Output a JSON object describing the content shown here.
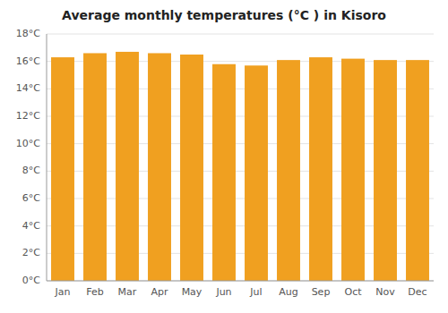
{
  "chart_data": {
    "type": "bar",
    "title": "Average monthly temperatures (°C ) in Kisoro",
    "categories": [
      "Jan",
      "Feb",
      "Mar",
      "Apr",
      "May",
      "Jun",
      "Jul",
      "Aug",
      "Sep",
      "Oct",
      "Nov",
      "Dec"
    ],
    "values": [
      16.3,
      16.6,
      16.7,
      16.6,
      16.5,
      15.8,
      15.7,
      16.1,
      16.3,
      16.2,
      16.1,
      16.1
    ],
    "color": "#F0A020",
    "ylim": [
      0,
      18
    ],
    "yticks": [
      {
        "value": 0,
        "label": "0°C"
      },
      {
        "value": 2,
        "label": "2°C"
      },
      {
        "value": 4,
        "label": "4°C"
      },
      {
        "value": 6,
        "label": "6°C"
      },
      {
        "value": 8,
        "label": "8°C"
      },
      {
        "value": 10,
        "label": "10°C"
      },
      {
        "value": 12,
        "label": "12°C"
      },
      {
        "value": 14,
        "label": "14°C"
      },
      {
        "value": 16,
        "label": "16°C"
      },
      {
        "value": 18,
        "label": "18°C"
      }
    ],
    "grid": true
  }
}
